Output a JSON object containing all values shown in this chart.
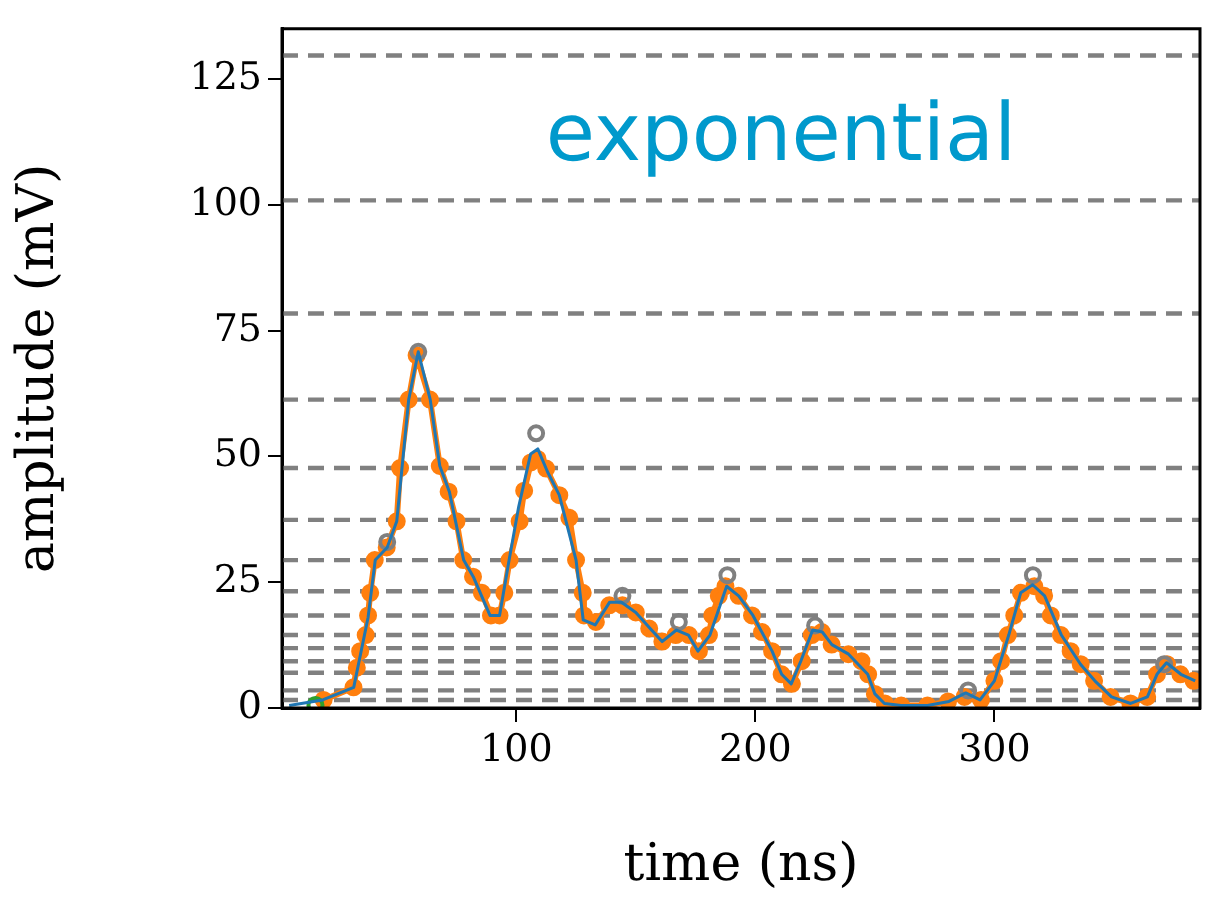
{
  "chart_data": {
    "type": "line",
    "xlabel": "time (ns)",
    "ylabel": "amplitude (mV)",
    "annotations": [
      "exponential"
    ],
    "xlim": [
      2,
      386
    ],
    "ylim": [
      0,
      135
    ],
    "xticks": [
      100,
      200,
      300
    ],
    "yticks": [
      0,
      25,
      50,
      75,
      100,
      125
    ],
    "grid": false,
    "legend": false,
    "ref_lines": [
      {
        "axis": "y",
        "value": 129.7,
        "color": "#808080",
        "line_style": "dashed"
      },
      {
        "axis": "y",
        "value": 100.9,
        "color": "#808080",
        "line_style": "dashed"
      },
      {
        "axis": "y",
        "value": 78.4,
        "color": "#808080",
        "line_style": "dashed"
      },
      {
        "axis": "y",
        "value": 61.3,
        "color": "#808080",
        "line_style": "dashed"
      },
      {
        "axis": "y",
        "value": 47.7,
        "color": "#808080",
        "line_style": "dashed"
      },
      {
        "axis": "y",
        "value": 37.4,
        "color": "#808080",
        "line_style": "dashed"
      },
      {
        "axis": "y",
        "value": 29.4,
        "color": "#808080",
        "line_style": "dashed"
      },
      {
        "axis": "y",
        "value": 23.2,
        "color": "#808080",
        "line_style": "dashed"
      },
      {
        "axis": "y",
        "value": 18.4,
        "color": "#808080",
        "line_style": "dashed"
      },
      {
        "axis": "y",
        "value": 14.5,
        "color": "#808080",
        "line_style": "dashed"
      },
      {
        "axis": "y",
        "value": 11.9,
        "color": "#808080",
        "line_style": "dashed"
      },
      {
        "axis": "y",
        "value": 9.3,
        "color": "#808080",
        "line_style": "dashed"
      },
      {
        "axis": "y",
        "value": 7,
        "color": "#808080",
        "line_style": "dashed"
      },
      {
        "axis": "y",
        "value": 3.5,
        "color": "#808080",
        "line_style": "dashed"
      },
      {
        "axis": "y",
        "value": 1.6,
        "color": "#808080",
        "line_style": "dashed"
      }
    ],
    "series": [
      {
        "color": "#1f77b4",
        "marker": "none",
        "x": [
          5,
          19,
          32,
          38,
          41,
          46,
          50,
          55,
          59,
          64,
          68,
          72,
          78,
          82,
          89,
          93,
          97,
          101,
          106,
          109,
          113,
          118,
          125,
          128,
          133,
          139,
          144,
          150,
          156,
          161,
          167,
          172,
          176,
          181,
          188,
          193,
          199,
          207,
          211,
          215,
          219,
          224,
          228,
          232,
          239,
          247,
          250,
          254,
          261,
          272,
          281,
          288,
          294,
          300,
          306,
          311,
          316,
          321,
          328,
          336,
          342,
          349,
          357,
          364,
          368,
          372,
          378,
          384
        ],
        "values": [
          0.5,
          1.6,
          4.1,
          18,
          29.4,
          31.9,
          37.1,
          61.3,
          70.8,
          61.3,
          48.1,
          43,
          29.4,
          26.1,
          18.4,
          18.4,
          29.4,
          40,
          50.5,
          51.5,
          47,
          42.3,
          29.4,
          17.5,
          16.5,
          21,
          21,
          19,
          15.8,
          13.2,
          15.5,
          14.5,
          11.3,
          14.5,
          24.2,
          22.3,
          18.4,
          11.3,
          6.7,
          4.8,
          9.3,
          15.5,
          15.1,
          12.6,
          10.7,
          6.7,
          2.8,
          0.9,
          0.5,
          0.5,
          1.3,
          3,
          1.6,
          5.4,
          14.5,
          22.9,
          24.5,
          22.3,
          14.5,
          8.7,
          5.4,
          2.2,
          0.9,
          2.2,
          6.7,
          9,
          6.7,
          5.4
        ]
      },
      {
        "color": "#ff7f0e",
        "marker": "circle",
        "x": [
          19.4,
          31.9,
          33.3,
          34.7,
          37,
          38,
          38.9,
          40.8,
          45.8,
          50,
          51.4,
          55,
          58.3,
          63.9,
          68,
          71.7,
          75,
          77.8,
          81.9,
          85.6,
          89.4,
          93,
          95,
          97.2,
          101.4,
          103.3,
          106.1,
          108.9,
          112.5,
          118,
          122.2,
          125,
          127.8,
          128.3,
          133.3,
          138.9,
          144.4,
          150,
          155.6,
          161.1,
          166.7,
          172.2,
          176.4,
          180.6,
          182,
          184.7,
          187.5,
          193,
          198.6,
          202.8,
          207,
          211,
          215.3,
          219.4,
          223.6,
          227.8,
          231.9,
          238.9,
          244.4,
          247.2,
          250,
          254.2,
          261,
          272,
          280.6,
          287.5,
          294.4,
          300,
          302.8,
          305.6,
          308.3,
          311.1,
          316.7,
          320.8,
          323.6,
          327.8,
          331.9,
          336.1,
          341.7,
          348.6,
          356.9,
          363.9,
          368,
          372.2,
          377.8,
          383.3
        ],
        "values": [
          1.6,
          4.1,
          8,
          11.3,
          14.5,
          18.4,
          22.9,
          29.4,
          31.9,
          37.1,
          47.7,
          61.3,
          70.1,
          61.3,
          48.1,
          43,
          37.1,
          29.4,
          26.1,
          22.9,
          18.4,
          18.4,
          22.9,
          29.4,
          37.1,
          43.2,
          48.8,
          49.5,
          47.6,
          42.3,
          37.8,
          29.4,
          22.9,
          18.4,
          17.1,
          20.4,
          20.4,
          19,
          15.8,
          13.2,
          14.5,
          14.5,
          11.3,
          14.5,
          18.4,
          22.3,
          24.2,
          22.3,
          18.4,
          15.1,
          11.3,
          6.7,
          4.8,
          9.3,
          14.5,
          15.1,
          12.6,
          10.7,
          9.3,
          6.7,
          2.8,
          0.9,
          0.5,
          0.5,
          1.3,
          2.2,
          1.6,
          5.4,
          9.3,
          14.5,
          18.4,
          22.9,
          24.2,
          22.3,
          18.4,
          14.5,
          11.3,
          8.7,
          5.4,
          2.2,
          0.9,
          2.2,
          6.7,
          8.7,
          6.7,
          5.4
        ]
      },
      {
        "type": "scatter",
        "color": "#808080",
        "marker": "circle",
        "x": [
          46,
          59,
          108.3,
          144.4,
          168,
          188.3,
          225,
          289,
          316.1,
          371
        ],
        "values": [
          33,
          70.8,
          54.6,
          22.3,
          17.1,
          26.4,
          16.4,
          3.5,
          26.4,
          8.7
        ]
      },
      {
        "type": "scatter",
        "color": "#2ca02c",
        "marker": "circle",
        "x": [
          16
        ],
        "values": [
          0.6
        ]
      }
    ]
  }
}
